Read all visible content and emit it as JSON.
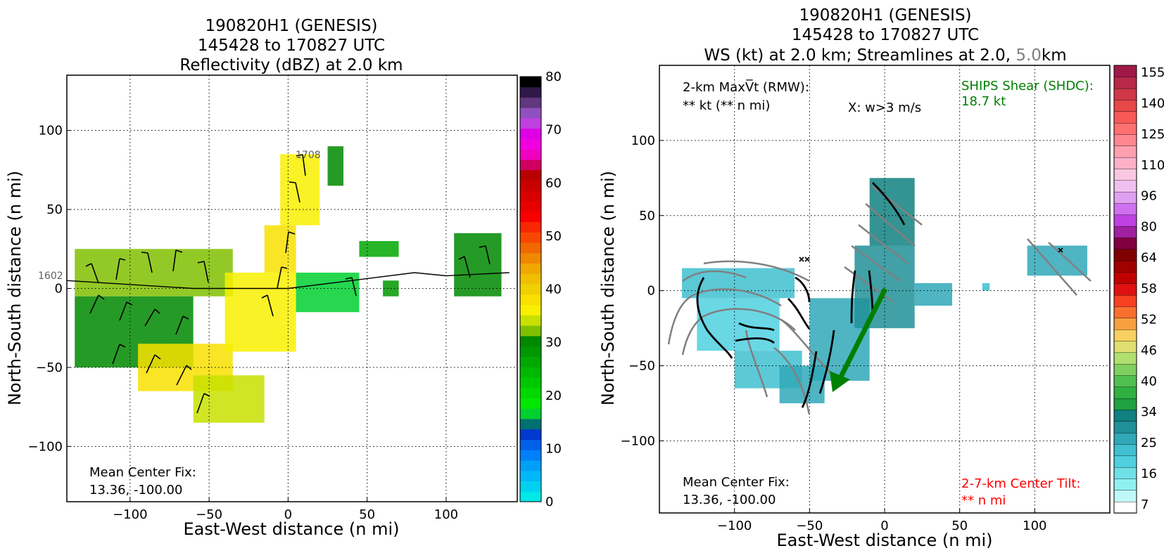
{
  "left_panel": {
    "title_lines": [
      "190820H1 (GENESIS)",
      "145428 to 170827 UTC",
      "Reflectivity (dBZ) at 2.0 km"
    ],
    "xlabel": "East-West distance (n mi)",
    "ylabel": "North-South distance (n mi)",
    "xticks": [
      -100,
      -50,
      0,
      50,
      100
    ],
    "yticks": [
      -100,
      -50,
      0,
      50,
      100
    ],
    "xticklabels": [
      "−100",
      "−50",
      "0",
      "50",
      "100"
    ],
    "yticklabels": [
      "−100",
      "−50",
      "0",
      "50",
      "100"
    ],
    "xlim": [
      -140,
      145
    ],
    "ylim": [
      -135,
      135
    ],
    "grid": true,
    "center_fix_lines": [
      "Mean Center Fix:",
      "13.36, -100.00"
    ],
    "track_labels": {
      "start": "1602",
      "end": "1708"
    },
    "colorbar": {
      "ticks": [
        0,
        10,
        20,
        30,
        40,
        50,
        60,
        70,
        80
      ],
      "min": 0,
      "max": 80,
      "colors": [
        "#00e8e8",
        "#00d0f0",
        "#00b8f8",
        "#00a0f8",
        "#0080f8",
        "#0060e8",
        "#0038d0",
        "#007070",
        "#00d030",
        "#00e800",
        "#00d800",
        "#00c800",
        "#00b800",
        "#00a800",
        "#009800",
        "#008800",
        "#80c000",
        "#c8e000",
        "#f8f000",
        "#f8e000",
        "#f0d000",
        "#f0c000",
        "#f0a800",
        "#f08800",
        "#f06800",
        "#f84800",
        "#f82800",
        "#f80000",
        "#e80000",
        "#d80000",
        "#c80000",
        "#b80000",
        "#d00060",
        "#f000c0",
        "#f000e0",
        "#e000e8",
        "#c040e0",
        "#9050c0",
        "#603880",
        "#301848",
        "#000000"
      ]
    },
    "chart_data": {
      "type": "heatmap",
      "title": "190820H1 (GENESIS) 145428 to 170827 UTC Reflectivity (dBZ) at 2.0 km",
      "xlabel": "East-West distance (n mi)",
      "ylabel": "North-South distance (n mi)",
      "xlim": [
        -140,
        145
      ],
      "ylim": [
        -135,
        135
      ],
      "value_range": [
        0,
        80
      ],
      "units": "dBZ",
      "echo_regions": [
        {
          "x": [
            -135,
            -35
          ],
          "y": [
            -5,
            25
          ],
          "dbz": 32
        },
        {
          "x": [
            -135,
            -60
          ],
          "y": [
            -50,
            -5
          ],
          "dbz": 30
        },
        {
          "x": [
            -95,
            -35
          ],
          "y": [
            -65,
            -35
          ],
          "dbz": 38
        },
        {
          "x": [
            -60,
            -15
          ],
          "y": [
            -85,
            -55
          ],
          "dbz": 33
        },
        {
          "x": [
            -40,
            5
          ],
          "y": [
            -40,
            10
          ],
          "dbz": 36
        },
        {
          "x": [
            -15,
            5
          ],
          "y": [
            10,
            40
          ],
          "dbz": 37
        },
        {
          "x": [
            -5,
            20
          ],
          "y": [
            40,
            85
          ],
          "dbz": 35
        },
        {
          "x": [
            25,
            35
          ],
          "y": [
            65,
            90
          ],
          "dbz": 30
        },
        {
          "x": [
            5,
            45
          ],
          "y": [
            -15,
            10
          ],
          "dbz": 15
        },
        {
          "x": [
            45,
            70
          ],
          "y": [
            20,
            30
          ],
          "dbz": 25
        },
        {
          "x": [
            60,
            70
          ],
          "y": [
            -5,
            5
          ],
          "dbz": 28
        },
        {
          "x": [
            105,
            135
          ],
          "y": [
            -5,
            35
          ],
          "dbz": 30
        }
      ],
      "flight_track": {
        "x": [
          -140,
          -60,
          0,
          40,
          80,
          100,
          140
        ],
        "y": [
          5,
          0,
          0,
          5,
          10,
          8,
          10
        ]
      }
    }
  },
  "right_panel": {
    "title_lines": [
      "190820H1 (GENESIS)",
      "145428 to 170827 UTC"
    ],
    "title_line3_a": "WS (kt) at 2.0 km; Streamlines at 2.0,",
    "title_line3_b": "5.0",
    "title_line3_c": "km",
    "title_line3_b_color": "#808080",
    "xlabel": "East-West distance (n mi)",
    "ylabel": "North-South distance (n mi)",
    "xticks": [
      -100,
      -50,
      0,
      50,
      100
    ],
    "yticks": [
      -100,
      -50,
      0,
      50,
      100
    ],
    "xticklabels": [
      "−100",
      "−50",
      "0",
      "50",
      "100"
    ],
    "yticklabels": [
      "−100",
      "−50",
      "0",
      "50",
      "100"
    ],
    "xlim": [
      -150,
      150
    ],
    "ylim": [
      -148,
      150
    ],
    "grid": true,
    "maxvt_line1": "2-km MaxV̅t (RMW):",
    "maxvt_line2": "** kt (** n mi)",
    "w_label": "X: w>3 m/s",
    "shear_lines": [
      "SHIPS Shear (SHDC):",
      "18.7 kt"
    ],
    "shear_color": "#008000",
    "center_fix_lines": [
      "Mean Center Fix:",
      "13.36, -100.00"
    ],
    "tilt_lines": [
      "2-7-km Center Tilt:",
      "** n mi"
    ],
    "tilt_color": "#ff0000",
    "colorbar": {
      "ticks": [
        7,
        16,
        25,
        34,
        40,
        46,
        52,
        58,
        64,
        80,
        96,
        110,
        125,
        140,
        155
      ],
      "colors": [
        "#ffffff",
        "#c0f8f8",
        "#90f0f0",
        "#70e0e8",
        "#50d0e0",
        "#40c0d0",
        "#30a8b8",
        "#209098",
        "#108080",
        "#20a040",
        "#30b040",
        "#50c050",
        "#80d060",
        "#b0e070",
        "#e0e070",
        "#f8d060",
        "#f8a040",
        "#f87030",
        "#f84020",
        "#e01010",
        "#c00000",
        "#a00000",
        "#800000",
        "#800040",
        "#a020a0",
        "#c040e0",
        "#d070f0",
        "#e0a0f0",
        "#f0c0f0",
        "#f8c8e0",
        "#ffb0c8",
        "#ffa0b0",
        "#ff8890",
        "#ff7070",
        "#f85858",
        "#e84848",
        "#d03848",
        "#b82848",
        "#a01848"
      ]
    },
    "chart_data": {
      "type": "heatmap",
      "title": "190820H1 (GENESIS) 145428 to 170827 UTC WS (kt) at 2.0 km; Streamlines at 2.0, 5.0 km",
      "xlabel": "East-West distance (n mi)",
      "ylabel": "North-South distance (n mi)",
      "xlim": [
        -150,
        150
      ],
      "ylim": [
        -148,
        150
      ],
      "units": "kt",
      "wind_speed_regions": [
        {
          "x": [
            -135,
            -60
          ],
          "y": [
            -5,
            15
          ],
          "kt": 14
        },
        {
          "x": [
            -125,
            -70
          ],
          "y": [
            -40,
            -5
          ],
          "kt": 12
        },
        {
          "x": [
            -100,
            -55
          ],
          "y": [
            -65,
            -40
          ],
          "kt": 16
        },
        {
          "x": [
            -70,
            -40
          ],
          "y": [
            -75,
            -50
          ],
          "kt": 20
        },
        {
          "x": [
            -50,
            -10
          ],
          "y": [
            -60,
            -5
          ],
          "kt": 19
        },
        {
          "x": [
            -20,
            20
          ],
          "y": [
            -25,
            30
          ],
          "kt": 21
        },
        {
          "x": [
            -10,
            20
          ],
          "y": [
            30,
            75
          ],
          "kt": 27
        },
        {
          "x": [
            20,
            45
          ],
          "y": [
            -10,
            5
          ],
          "kt": 17
        },
        {
          "x": [
            65,
            70
          ],
          "y": [
            0,
            5
          ],
          "kt": 15
        },
        {
          "x": [
            95,
            135
          ],
          "y": [
            10,
            30
          ],
          "kt": 20
        }
      ],
      "ships_shear": {
        "value_kt": 18.7,
        "direction_vector": {
          "x": [
            0,
            -30
          ],
          "y": [
            0,
            -65
          ]
        }
      },
      "w_markers": {
        "x": [
          -53,
          118
        ],
        "y": [
          20,
          26
        ]
      }
    }
  }
}
